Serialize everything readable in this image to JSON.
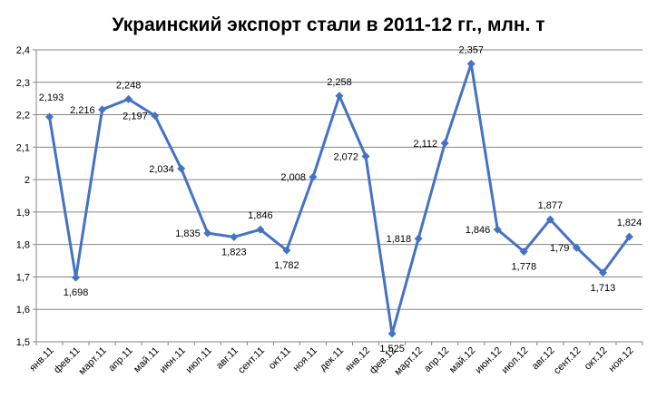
{
  "chart_data": {
    "type": "line",
    "title": "Украинский экспорт стали в 2011-12 гг., млн. т",
    "xlabel": "",
    "ylabel": "",
    "ylim": [
      1.5,
      2.4
    ],
    "yticks": [
      "1,5",
      "1,6",
      "1,7",
      "1,8",
      "1,9",
      "2",
      "2,1",
      "2,2",
      "2,3",
      "2,4"
    ],
    "grid": true,
    "legend": "none",
    "categories": [
      "янв.11",
      "фев.11",
      "март.11",
      "апр.11",
      "май.11",
      "июн.11",
      "июл.11",
      "авг.11",
      "сент.11",
      "окт.11",
      "ноя.11",
      "дек.11",
      "янв.12",
      "фев.12",
      "март.12",
      "апр.12",
      "май.12",
      "июн.12",
      "июл.12",
      "авг.12",
      "сент.12",
      "окт.12",
      "ноя.12"
    ],
    "series": [
      {
        "values": [
          2.193,
          1.698,
          2.216,
          2.248,
          2.197,
          2.034,
          1.835,
          1.823,
          1.846,
          1.782,
          2.008,
          2.258,
          2.072,
          1.525,
          1.818,
          2.112,
          2.357,
          1.846,
          1.778,
          1.877,
          1.79,
          1.713,
          1.824
        ],
        "labels": [
          "2,193",
          "1,698",
          "2,216",
          "2,248",
          "2,197",
          "2,034",
          "1,835",
          "1,823",
          "1,846",
          "1,782",
          "2,008",
          "2,258",
          "2,072",
          "1,525",
          "1,818",
          "2,112",
          "2,357",
          "1,846",
          "1,778",
          "1,877",
          "1,79",
          "1,713",
          "1,824"
        ],
        "color": "#4472C4"
      }
    ],
    "colors": {
      "line": "#4472C4",
      "grid": "#868686",
      "axis": "#868686",
      "text": "#000000"
    }
  }
}
